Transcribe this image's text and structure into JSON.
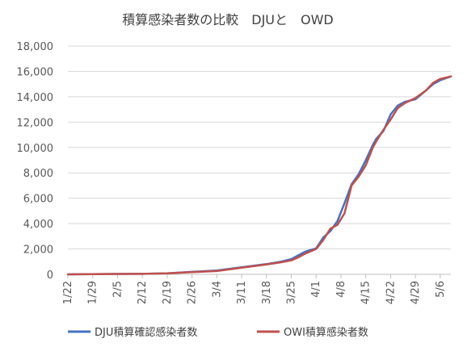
{
  "chart_data": {
    "type": "line",
    "title": "積算感染者数の比較　DJUと　OWD",
    "xlabel": "",
    "ylabel": "",
    "ylim": [
      0,
      18000
    ],
    "yticks": [
      0,
      2000,
      4000,
      6000,
      8000,
      10000,
      12000,
      14000,
      16000,
      18000
    ],
    "ytick_labels": [
      "0",
      "2,000",
      "4,000",
      "6,000",
      "8,000",
      "10,000",
      "12,000",
      "14,000",
      "16,000",
      "18,000"
    ],
    "x_categories": [
      "1/22",
      "1/29",
      "2/5",
      "2/12",
      "2/19",
      "2/26",
      "3/4",
      "3/11",
      "3/18",
      "3/25",
      "4/1",
      "4/8",
      "4/15",
      "4/22",
      "4/29",
      "5/6"
    ],
    "x_start": "1/22",
    "x_end": "5/9",
    "grid": "horizontal",
    "legend_position": "bottom",
    "series": [
      {
        "name": "DJU積算確認感染者数",
        "color": "#4472C4",
        "x": [
          "1/22",
          "1/29",
          "2/5",
          "2/12",
          "2/19",
          "2/26",
          "3/4",
          "3/11",
          "3/18",
          "3/22",
          "3/25",
          "3/27",
          "3/29",
          "4/1",
          "4/3",
          "4/5",
          "4/7",
          "4/9",
          "4/11",
          "4/13",
          "4/15",
          "4/17",
          "4/18",
          "4/20",
          "4/22",
          "4/24",
          "4/26",
          "4/29",
          "5/2",
          "5/4",
          "5/6",
          "5/9"
        ],
        "values": [
          0,
          10,
          30,
          35,
          80,
          200,
          300,
          560,
          810,
          1000,
          1200,
          1500,
          1800,
          2050,
          2900,
          3400,
          4200,
          5600,
          7100,
          7900,
          9000,
          10200,
          10700,
          11300,
          12600,
          13300,
          13600,
          13800,
          14500,
          15000,
          15300,
          15600
        ]
      },
      {
        "name": "OWI積算感染者数",
        "color": "#C0504D",
        "x": [
          "1/22",
          "1/29",
          "2/5",
          "2/12",
          "2/19",
          "2/26",
          "3/4",
          "3/11",
          "3/18",
          "3/22",
          "3/25",
          "3/27",
          "3/29",
          "4/1",
          "4/3",
          "4/5",
          "4/7",
          "4/9",
          "4/11",
          "4/13",
          "4/15",
          "4/17",
          "4/18",
          "4/20",
          "4/22",
          "4/24",
          "4/26",
          "4/29",
          "5/2",
          "5/4",
          "5/6",
          "5/9"
        ],
        "values": [
          0,
          10,
          30,
          35,
          80,
          180,
          260,
          520,
          780,
          950,
          1100,
          1350,
          1650,
          2000,
          2700,
          3600,
          3900,
          4800,
          7000,
          7700,
          8600,
          10000,
          10500,
          11400,
          12200,
          13100,
          13500,
          13900,
          14500,
          15100,
          15400,
          15600
        ]
      }
    ]
  }
}
